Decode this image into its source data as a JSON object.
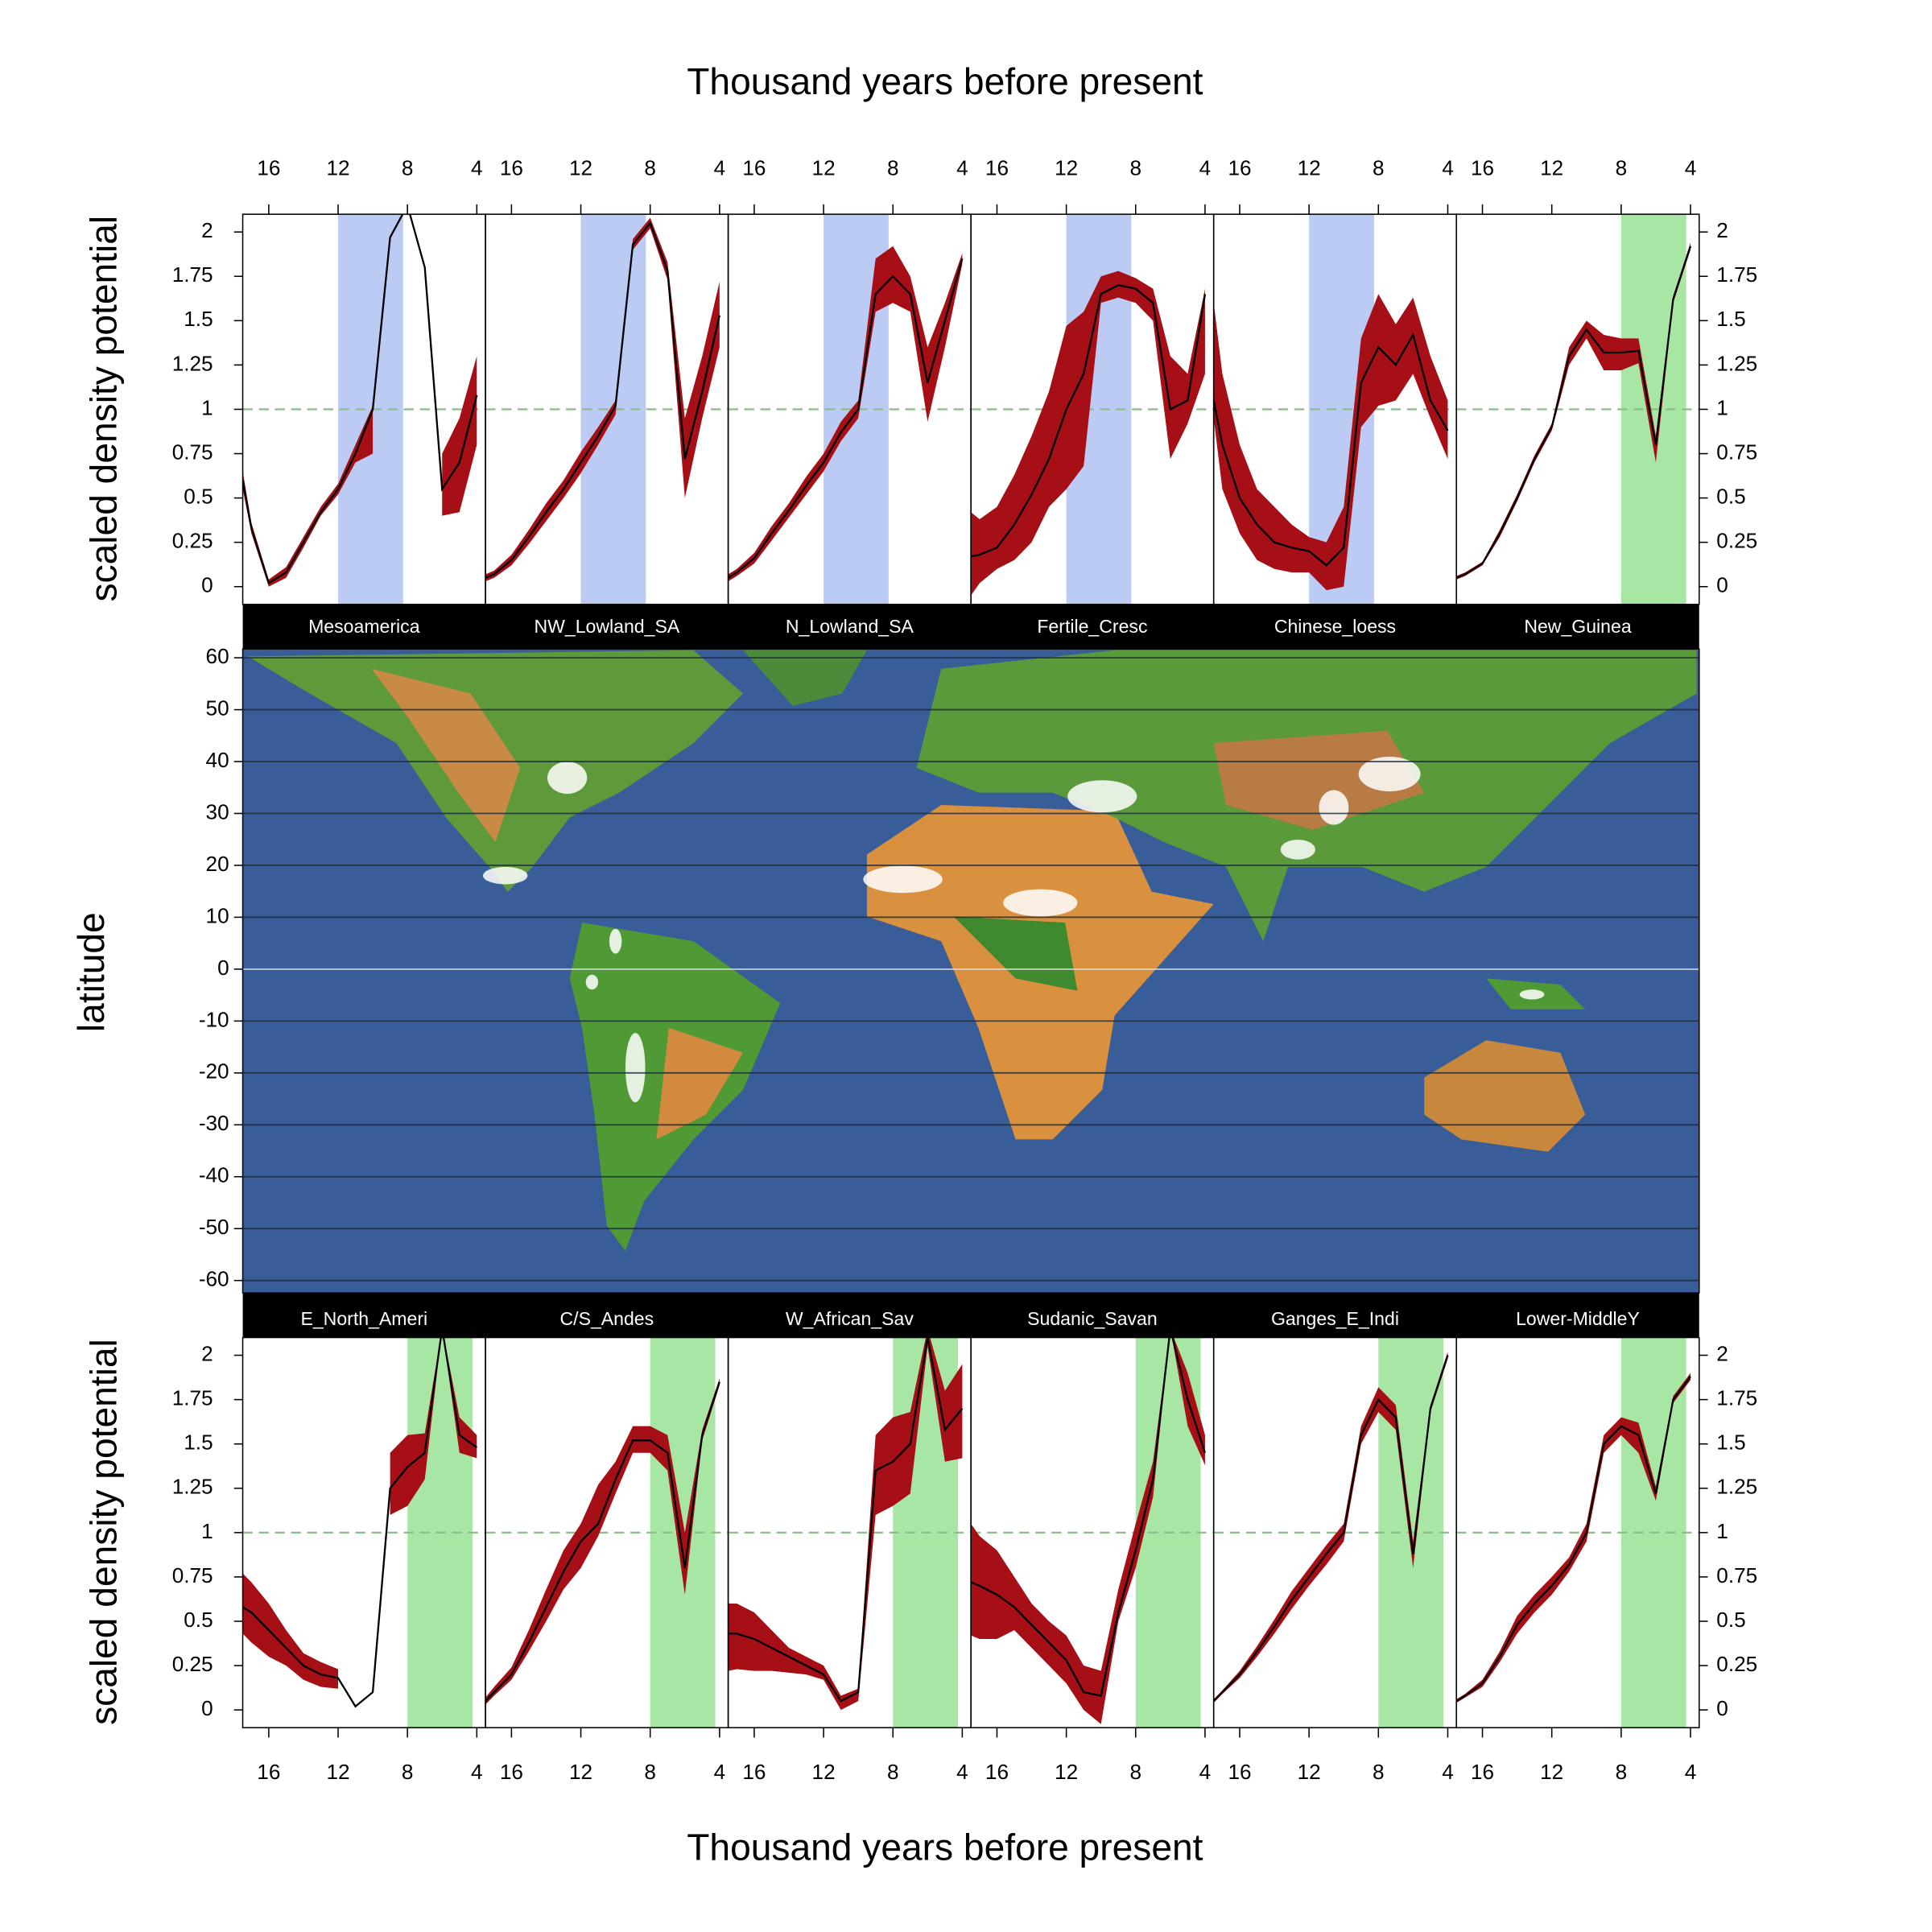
{
  "chart_data": {
    "type": "lattice",
    "xlabel": "Thousand years before present",
    "ylabel": "scaled density potential",
    "x": [
      17.5,
      17,
      16,
      15,
      14,
      13,
      12,
      11,
      10,
      9,
      8,
      7,
      6,
      5,
      4
    ],
    "xlim": [
      17.5,
      3.5
    ],
    "ylim": [
      -0.1,
      2.1
    ],
    "xticks": [
      16,
      12,
      8,
      4
    ],
    "yticks": [
      0,
      0.25,
      0.5,
      0.75,
      1,
      1.25,
      1.5,
      1.75,
      2
    ],
    "reference_line": 1,
    "line_color": "#000000",
    "band_color": "#a50f15",
    "reference_color": "#8cbf8c",
    "panels": [
      {
        "title": "Mesoamerica",
        "shade": [
          12,
          8.25
        ],
        "shade_color": "#bccbf3",
        "values": [
          0.6,
          0.33,
          0.02,
          0.08,
          0.25,
          0.42,
          0.55,
          0.75,
          1.0,
          1.97,
          2.15,
          1.8,
          0.55,
          0.7,
          1.08
        ],
        "lower": [
          0.55,
          0.3,
          0.0,
          0.05,
          0.22,
          0.4,
          0.52,
          0.7,
          0.75,
          null,
          null,
          null,
          0.4,
          0.42,
          0.8
        ],
        "upper": [
          0.65,
          0.36,
          0.04,
          0.11,
          0.28,
          0.45,
          0.58,
          0.8,
          1.02,
          null,
          null,
          null,
          0.75,
          0.95,
          1.3
        ]
      },
      {
        "title": "NW_Lowland_SA",
        "shade": [
          12,
          8.25
        ],
        "shade_color": "#bccbf3",
        "values": [
          0.05,
          0.07,
          0.15,
          0.28,
          0.42,
          0.55,
          0.7,
          0.85,
          1.02,
          1.93,
          2.05,
          1.78,
          0.72,
          1.1,
          1.53
        ],
        "lower": [
          0.03,
          0.05,
          0.12,
          0.24,
          0.37,
          0.5,
          0.64,
          0.8,
          0.97,
          1.9,
          2.02,
          1.73,
          0.5,
          0.95,
          1.35
        ],
        "upper": [
          0.07,
          0.09,
          0.18,
          0.32,
          0.47,
          0.6,
          0.76,
          0.9,
          1.05,
          1.96,
          2.08,
          1.83,
          0.95,
          1.3,
          1.72
        ]
      },
      {
        "title": "N_Lowland_SA",
        "shade": [
          12,
          8.25
        ],
        "shade_color": "#bccbf3",
        "values": [
          0.05,
          0.08,
          0.16,
          0.3,
          0.43,
          0.57,
          0.7,
          0.87,
          1.0,
          1.65,
          1.75,
          1.65,
          1.15,
          1.5,
          1.85
        ],
        "lower": [
          0.03,
          0.06,
          0.13,
          0.26,
          0.39,
          0.52,
          0.65,
          0.82,
          0.95,
          1.55,
          1.6,
          1.55,
          0.93,
          1.35,
          1.82
        ],
        "upper": [
          0.07,
          0.1,
          0.19,
          0.34,
          0.47,
          0.62,
          0.75,
          0.93,
          1.05,
          1.85,
          1.92,
          1.75,
          1.35,
          1.6,
          1.88
        ]
      },
      {
        "title": "Fertile_Cresc",
        "shade": [
          12,
          8.25
        ],
        "shade_color": "#bccbf3",
        "values": [
          0.17,
          0.18,
          0.22,
          0.35,
          0.52,
          0.72,
          1.0,
          1.2,
          1.65,
          1.7,
          1.68,
          1.6,
          1.0,
          1.05,
          1.65
        ],
        "lower": [
          -0.05,
          0.02,
          0.1,
          0.15,
          0.25,
          0.45,
          0.55,
          0.68,
          1.6,
          1.63,
          1.6,
          1.5,
          0.72,
          0.92,
          1.2
        ],
        "upper": [
          0.42,
          0.38,
          0.45,
          0.63,
          0.85,
          1.1,
          1.47,
          1.55,
          1.75,
          1.78,
          1.74,
          1.68,
          1.3,
          1.2,
          1.68
        ]
      },
      {
        "title": "Chinese_loess",
        "shade": [
          12,
          8.25
        ],
        "shade_color": "#bccbf3",
        "values": [
          1.05,
          0.8,
          0.5,
          0.35,
          0.25,
          0.22,
          0.2,
          0.12,
          0.22,
          1.15,
          1.35,
          1.25,
          1.42,
          1.05,
          0.88
        ],
        "lower": [
          0.95,
          0.55,
          0.3,
          0.15,
          0.1,
          0.08,
          0.08,
          -0.02,
          0.0,
          0.9,
          1.02,
          1.05,
          1.2,
          0.95,
          0.72
        ],
        "upper": [
          1.6,
          1.2,
          0.8,
          0.55,
          0.45,
          0.35,
          0.28,
          0.25,
          0.45,
          1.4,
          1.65,
          1.48,
          1.63,
          1.3,
          1.05
        ]
      },
      {
        "title": "New_Guinea",
        "shade": [
          8,
          4.25
        ],
        "shade_color": "#a8e6a3",
        "values": [
          0.05,
          0.07,
          0.13,
          0.3,
          0.5,
          0.72,
          0.9,
          1.3,
          1.45,
          1.32,
          1.32,
          1.33,
          0.8,
          1.62,
          1.92
        ],
        "lower": [
          0.04,
          0.06,
          0.12,
          0.28,
          0.48,
          0.7,
          0.88,
          1.25,
          1.4,
          1.22,
          1.22,
          1.26,
          0.7,
          1.6,
          1.9
        ],
        "upper": [
          0.06,
          0.08,
          0.14,
          0.32,
          0.52,
          0.74,
          0.92,
          1.35,
          1.5,
          1.42,
          1.4,
          1.4,
          0.85,
          1.64,
          1.94
        ]
      },
      {
        "title": "E_North_Ameri",
        "shade": [
          8,
          4.25
        ],
        "shade_color": "#a8e6a3",
        "values": [
          0.58,
          0.55,
          0.45,
          0.35,
          0.25,
          0.2,
          0.18,
          0.02,
          0.1,
          1.25,
          1.37,
          1.45,
          2.15,
          1.55,
          1.48
        ],
        "lower": [
          0.43,
          0.38,
          0.3,
          0.25,
          0.17,
          0.13,
          0.12,
          null,
          null,
          1.1,
          1.15,
          1.3,
          2.15,
          1.45,
          1.42
        ],
        "upper": [
          0.77,
          0.72,
          0.6,
          0.45,
          0.32,
          0.27,
          0.23,
          null,
          null,
          1.45,
          1.55,
          1.56,
          2.15,
          1.65,
          1.55
        ]
      },
      {
        "title": "C/S_Andes",
        "shade": [
          8,
          4.25
        ],
        "shade_color": "#a8e6a3",
        "values": [
          0.05,
          0.1,
          0.2,
          0.38,
          0.58,
          0.78,
          0.95,
          1.05,
          1.3,
          1.52,
          1.52,
          1.45,
          0.8,
          1.55,
          1.85
        ],
        "lower": [
          0.03,
          0.08,
          0.17,
          0.33,
          0.5,
          0.68,
          0.8,
          0.98,
          1.22,
          1.45,
          1.45,
          1.35,
          0.65,
          1.52,
          1.83
        ],
        "upper": [
          0.07,
          0.13,
          0.24,
          0.45,
          0.68,
          0.9,
          1.05,
          1.27,
          1.4,
          1.6,
          1.6,
          1.55,
          1.0,
          1.58,
          1.87
        ]
      },
      {
        "title": "W_African_Sav",
        "shade": [
          8,
          4.25
        ],
        "shade_color": "#a8e6a3",
        "values": [
          0.43,
          0.43,
          0.4,
          0.35,
          0.3,
          0.25,
          0.2,
          0.05,
          0.1,
          1.35,
          1.4,
          1.5,
          2.1,
          1.58,
          1.7
        ],
        "lower": [
          0.22,
          0.23,
          0.22,
          0.22,
          0.21,
          0.2,
          0.17,
          0.0,
          0.05,
          1.1,
          1.15,
          1.22,
          2.05,
          1.4,
          1.42
        ],
        "upper": [
          0.6,
          0.6,
          0.55,
          0.45,
          0.35,
          0.3,
          0.25,
          0.08,
          0.12,
          1.55,
          1.65,
          1.68,
          2.15,
          1.8,
          1.95
        ]
      },
      {
        "title": "Sudanic_Savan",
        "shade": [
          8,
          4.25
        ],
        "shade_color": "#a8e6a3",
        "values": [
          0.72,
          0.7,
          0.65,
          0.58,
          0.48,
          0.38,
          0.28,
          0.1,
          0.08,
          0.55,
          0.9,
          1.3,
          2.15,
          1.75,
          1.45
        ],
        "lower": [
          0.42,
          0.4,
          0.4,
          0.45,
          0.35,
          0.25,
          0.15,
          0.0,
          -0.08,
          0.5,
          0.8,
          1.2,
          2.15,
          1.6,
          1.38
        ],
        "upper": [
          1.05,
          0.98,
          0.9,
          0.75,
          0.6,
          0.5,
          0.42,
          0.25,
          0.22,
          0.68,
          1.05,
          1.4,
          2.15,
          1.9,
          1.55
        ]
      },
      {
        "title": "Ganges_E_Indi",
        "shade": [
          8,
          4.25
        ],
        "shade_color": "#a8e6a3",
        "values": [
          0.05,
          0.1,
          0.2,
          0.33,
          0.47,
          0.62,
          0.75,
          0.88,
          1.0,
          1.55,
          1.75,
          1.65,
          0.88,
          1.7,
          2.0
        ],
        "lower": [
          0.04,
          0.09,
          0.18,
          0.3,
          0.43,
          0.57,
          0.7,
          0.82,
          0.95,
          1.5,
          1.68,
          1.58,
          0.8,
          1.68,
          1.98
        ],
        "upper": [
          0.06,
          0.11,
          0.22,
          0.36,
          0.51,
          0.67,
          0.8,
          0.93,
          1.05,
          1.6,
          1.82,
          1.72,
          0.95,
          1.72,
          2.02
        ]
      },
      {
        "title": "Lower-MiddleY",
        "shade": [
          8,
          4.25
        ],
        "shade_color": "#a8e6a3",
        "values": [
          0.05,
          0.08,
          0.15,
          0.3,
          0.48,
          0.6,
          0.7,
          0.82,
          1.0,
          1.5,
          1.6,
          1.55,
          1.22,
          1.75,
          1.88
        ],
        "lower": [
          0.04,
          0.07,
          0.13,
          0.27,
          0.43,
          0.55,
          0.65,
          0.78,
          0.95,
          1.45,
          1.55,
          1.45,
          1.18,
          1.73,
          1.86
        ],
        "upper": [
          0.06,
          0.09,
          0.17,
          0.33,
          0.53,
          0.65,
          0.75,
          0.86,
          1.05,
          1.55,
          1.65,
          1.62,
          1.26,
          1.77,
          1.9
        ]
      }
    ],
    "map": {
      "ylabel": "latitude",
      "ylim": [
        -62.4,
        61.7
      ],
      "yticks": [
        -60,
        -50,
        -40,
        -30,
        -20,
        -10,
        0,
        10,
        20,
        30,
        40,
        50,
        60
      ]
    }
  }
}
